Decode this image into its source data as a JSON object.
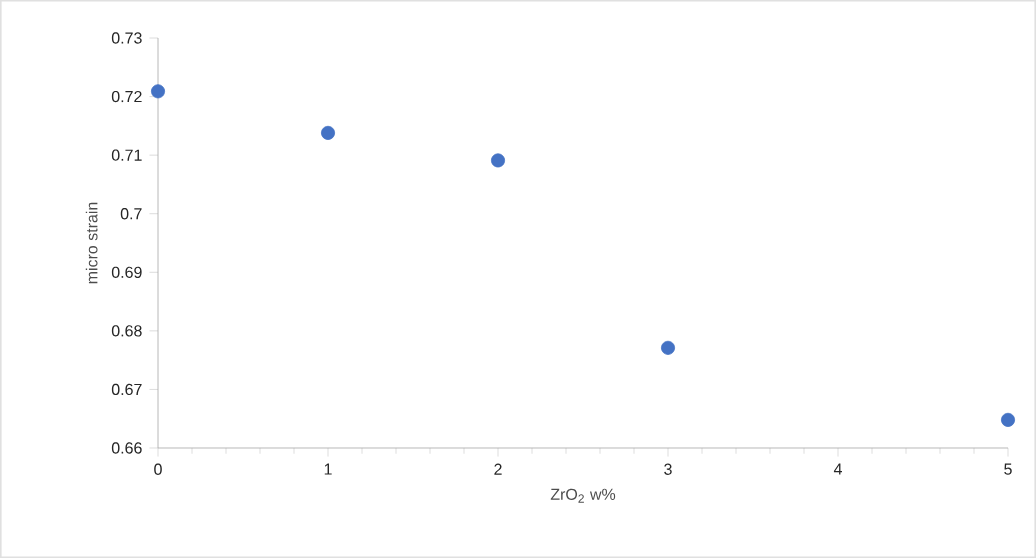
{
  "chart_data": {
    "type": "scatter",
    "xlabel": "ZrO$_{2}$ w%",
    "ylabel": "micro strain",
    "x": [
      0,
      1,
      2,
      3,
      5
    ],
    "values": [
      0.7209,
      0.7138,
      0.7091,
      0.6771,
      0.6648
    ],
    "color": "#4472c4",
    "marker": "circle",
    "xlim": [
      0,
      5
    ],
    "xticks": [
      0,
      1,
      2,
      3,
      4,
      5
    ],
    "ylim": [
      0.66,
      0.73
    ],
    "yticks": [
      0.66,
      0.67,
      0.68,
      0.69,
      0.7,
      0.71,
      0.72,
      0.73
    ],
    "grid": false
  }
}
